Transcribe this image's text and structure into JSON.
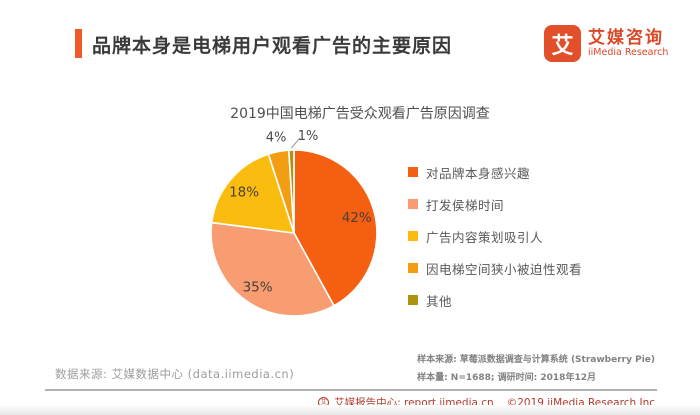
{
  "header": {
    "title": "品牌本身是电梯用户观看广告的主要原因",
    "accent_color": "#F05A28",
    "logo": {
      "glyph": "艾",
      "name_cn": "艾媒咨询",
      "name_en": "iiMedia Research",
      "color": "#DC4928",
      "mark_bg": "#E2502B"
    }
  },
  "chart_data": {
    "type": "pie",
    "title": "2019中国电梯广告受众观看广告原因调查",
    "start_angle_deg": 0,
    "direction": "clockwise",
    "legend_position": "right",
    "slices": [
      {
        "label": "对品牌本身感兴趣",
        "value": 42,
        "display": "42%",
        "color": "#F55F11",
        "label_placement": "inside"
      },
      {
        "label": "打发侯梯时间",
        "value": 35,
        "display": "35%",
        "color": "#F89C72",
        "label_placement": "inside"
      },
      {
        "label": "广告内容策划吸引人",
        "value": 18,
        "display": "18%",
        "color": "#FABD0F",
        "label_placement": "inside"
      },
      {
        "label": "因电梯空间狭小被迫性观看",
        "value": 4,
        "display": "4%",
        "color": "#F39D13",
        "label_placement": "outside"
      },
      {
        "label": "其他",
        "value": 1,
        "display": "1%",
        "color": "#AD9214",
        "label_placement": "outside",
        "leader": true
      }
    ]
  },
  "footnotes": {
    "data_source": "数据来源: 艾媒数据中心 (data.iimedia.cn)",
    "sample_source": "样本来源: 草莓派数据调查与计算系统 (Strawberry Pie)",
    "sample_size": "样本量: N=1688; 调研时间: 2018年12月"
  },
  "footer": {
    "icon_glyph": "艾",
    "site": "艾媒报告中心: report.iimedia.cn",
    "copyright": "©2019 iiMedia Research Inc",
    "color": "#B23B2E"
  }
}
